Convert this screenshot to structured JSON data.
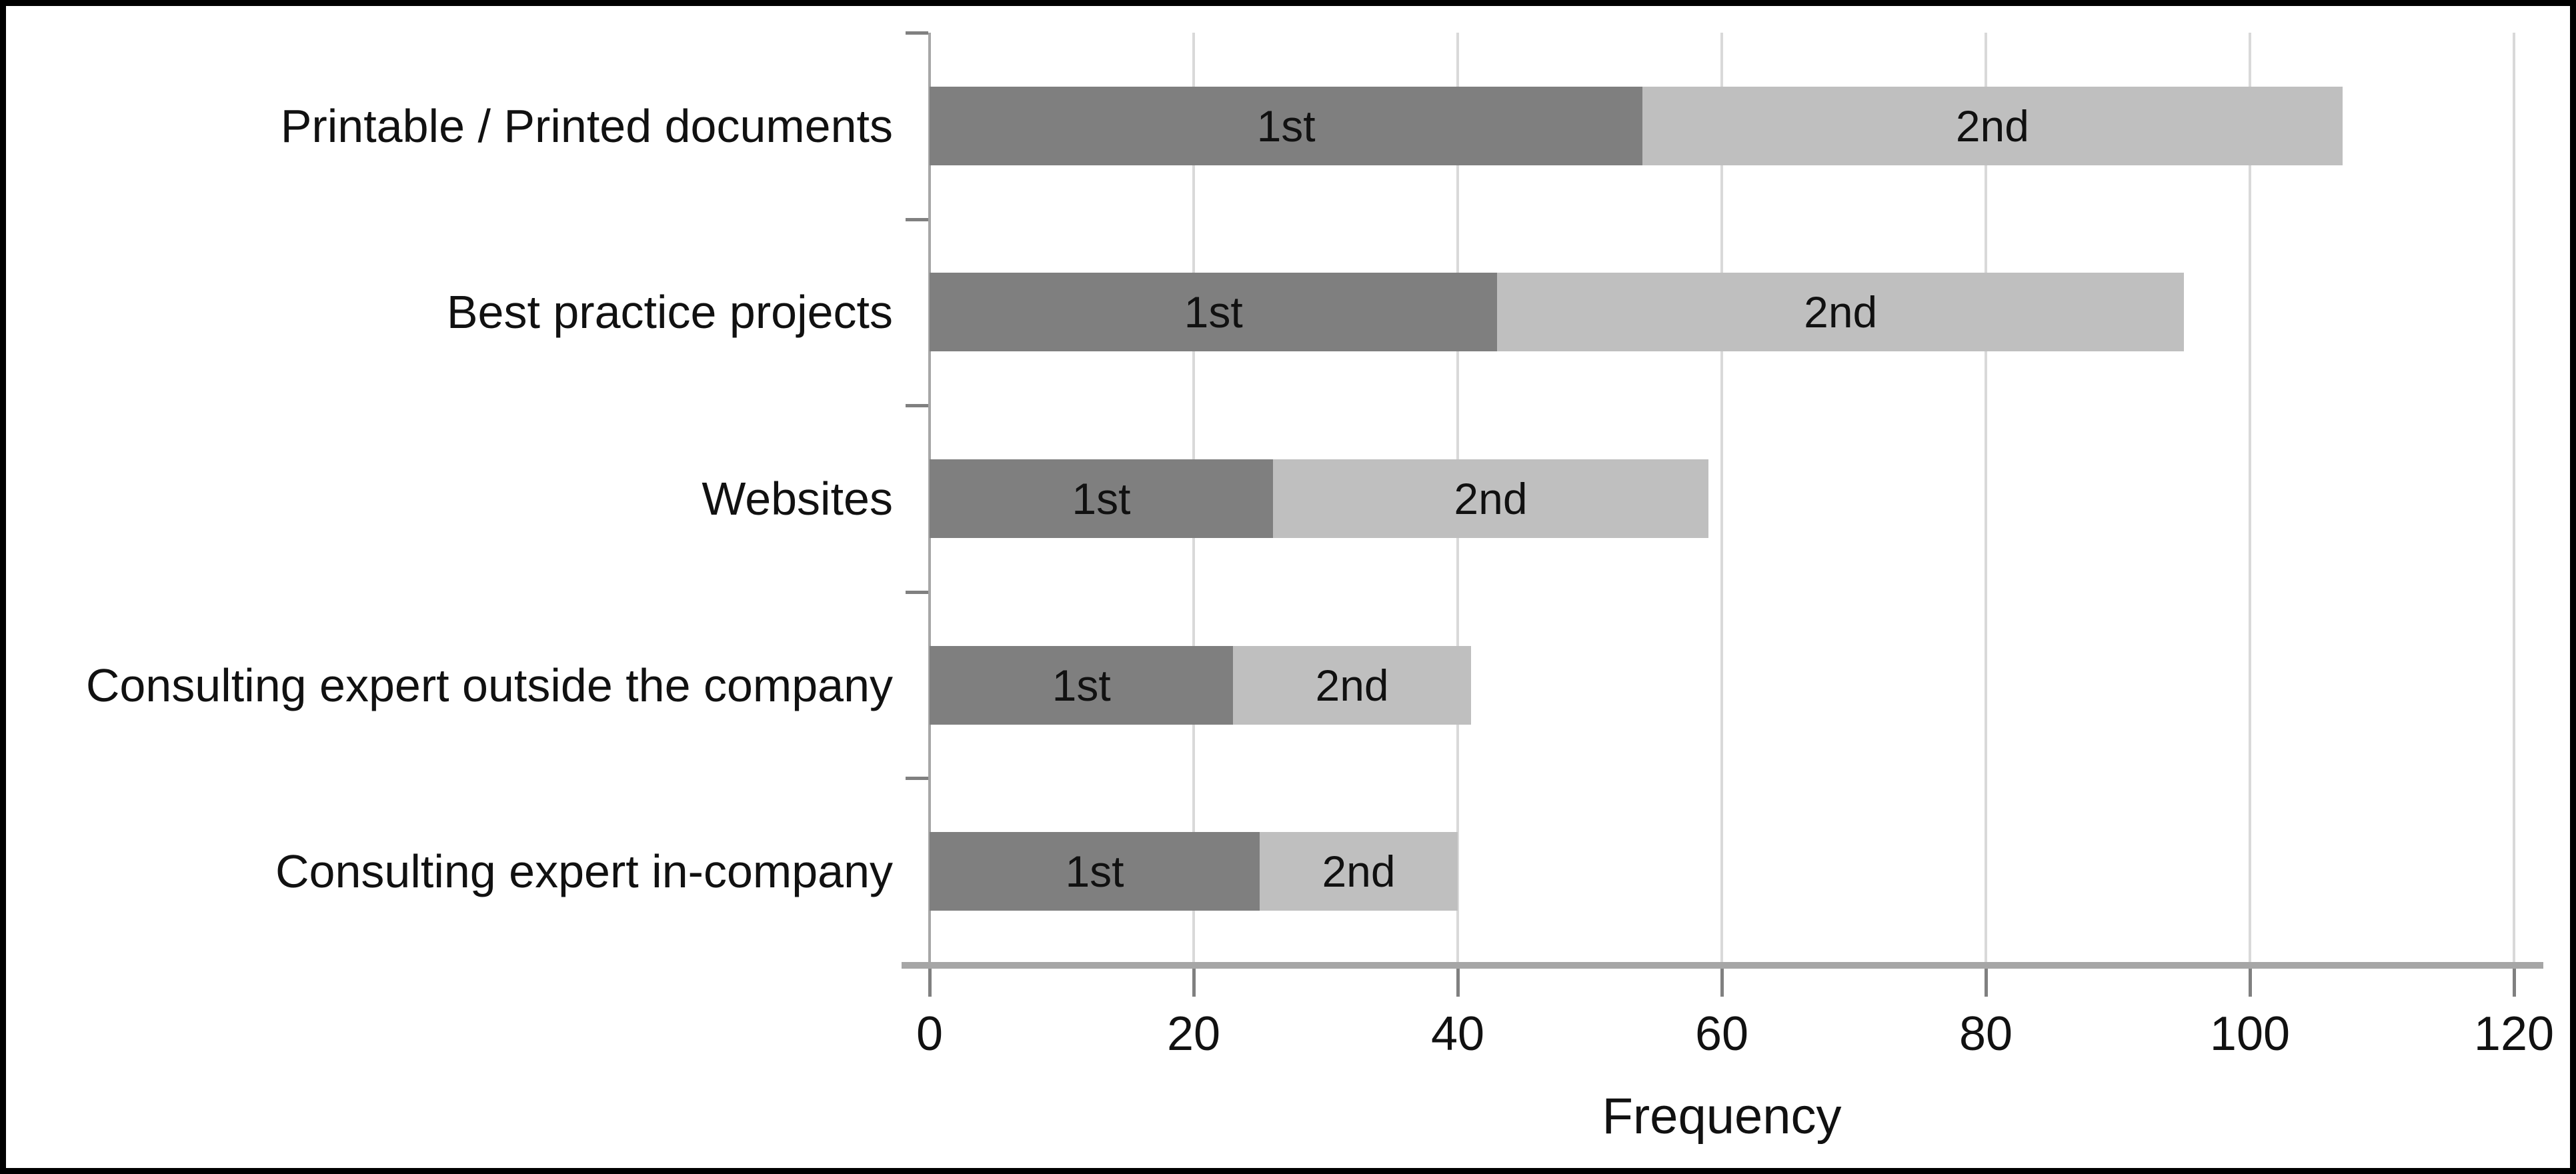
{
  "chart_data": {
    "type": "bar",
    "orientation": "horizontal",
    "stacked": true,
    "title": "",
    "categories": [
      "Printable / Printed documents",
      "Best practice projects",
      "Websites",
      "Consulting expert outside the company",
      "Consulting expert in-company"
    ],
    "series": [
      {
        "name": "1st",
        "color": "#7F7F7F",
        "values": [
          54,
          43,
          26,
          23,
          25
        ]
      },
      {
        "name": "2nd",
        "color": "#BFBFBF",
        "values": [
          53,
          52,
          33,
          18,
          15
        ]
      }
    ],
    "stack_totals": [
      107,
      95,
      59,
      41,
      40
    ],
    "xlabel": "Frequency",
    "xlim": [
      0,
      120
    ],
    "xticks": [
      0,
      20,
      40,
      60,
      80,
      100,
      120
    ],
    "grid": "vertical gridlines on, behind bars",
    "legend_position": "none (series names printed inside bar segments)",
    "segment_label_color": "#111111"
  },
  "figure": {
    "border_color": "#000000",
    "background_color": "#FFFFFF",
    "gridline_color": "#D9D9D9",
    "axis_line_color": "#A6A6A6",
    "tick_color": "#808080"
  }
}
